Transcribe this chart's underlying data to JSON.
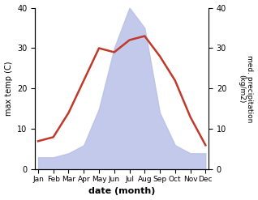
{
  "months": [
    "Jan",
    "Feb",
    "Mar",
    "Apr",
    "May",
    "Jun",
    "Jul",
    "Aug",
    "Sep",
    "Oct",
    "Nov",
    "Dec"
  ],
  "temperature": [
    7,
    8,
    14,
    22,
    30,
    29,
    32,
    33,
    28,
    22,
    13,
    6
  ],
  "precipitation": [
    3,
    3,
    4,
    6,
    15,
    30,
    40,
    35,
    14,
    6,
    4,
    4
  ],
  "temp_color": "#c0392b",
  "precip_fill_color": "#b8c0e8",
  "temp_ylim": [
    0,
    40
  ],
  "temp_yticks": [
    0,
    10,
    20,
    30,
    40
  ],
  "precip_ylim": [
    0,
    40
  ],
  "precip_yticks": [
    0,
    10,
    20,
    30,
    40
  ],
  "xlabel": "date (month)",
  "ylabel_left": "max temp (C)",
  "ylabel_right": "med. precipitation\n(kg/m2)",
  "title": ""
}
